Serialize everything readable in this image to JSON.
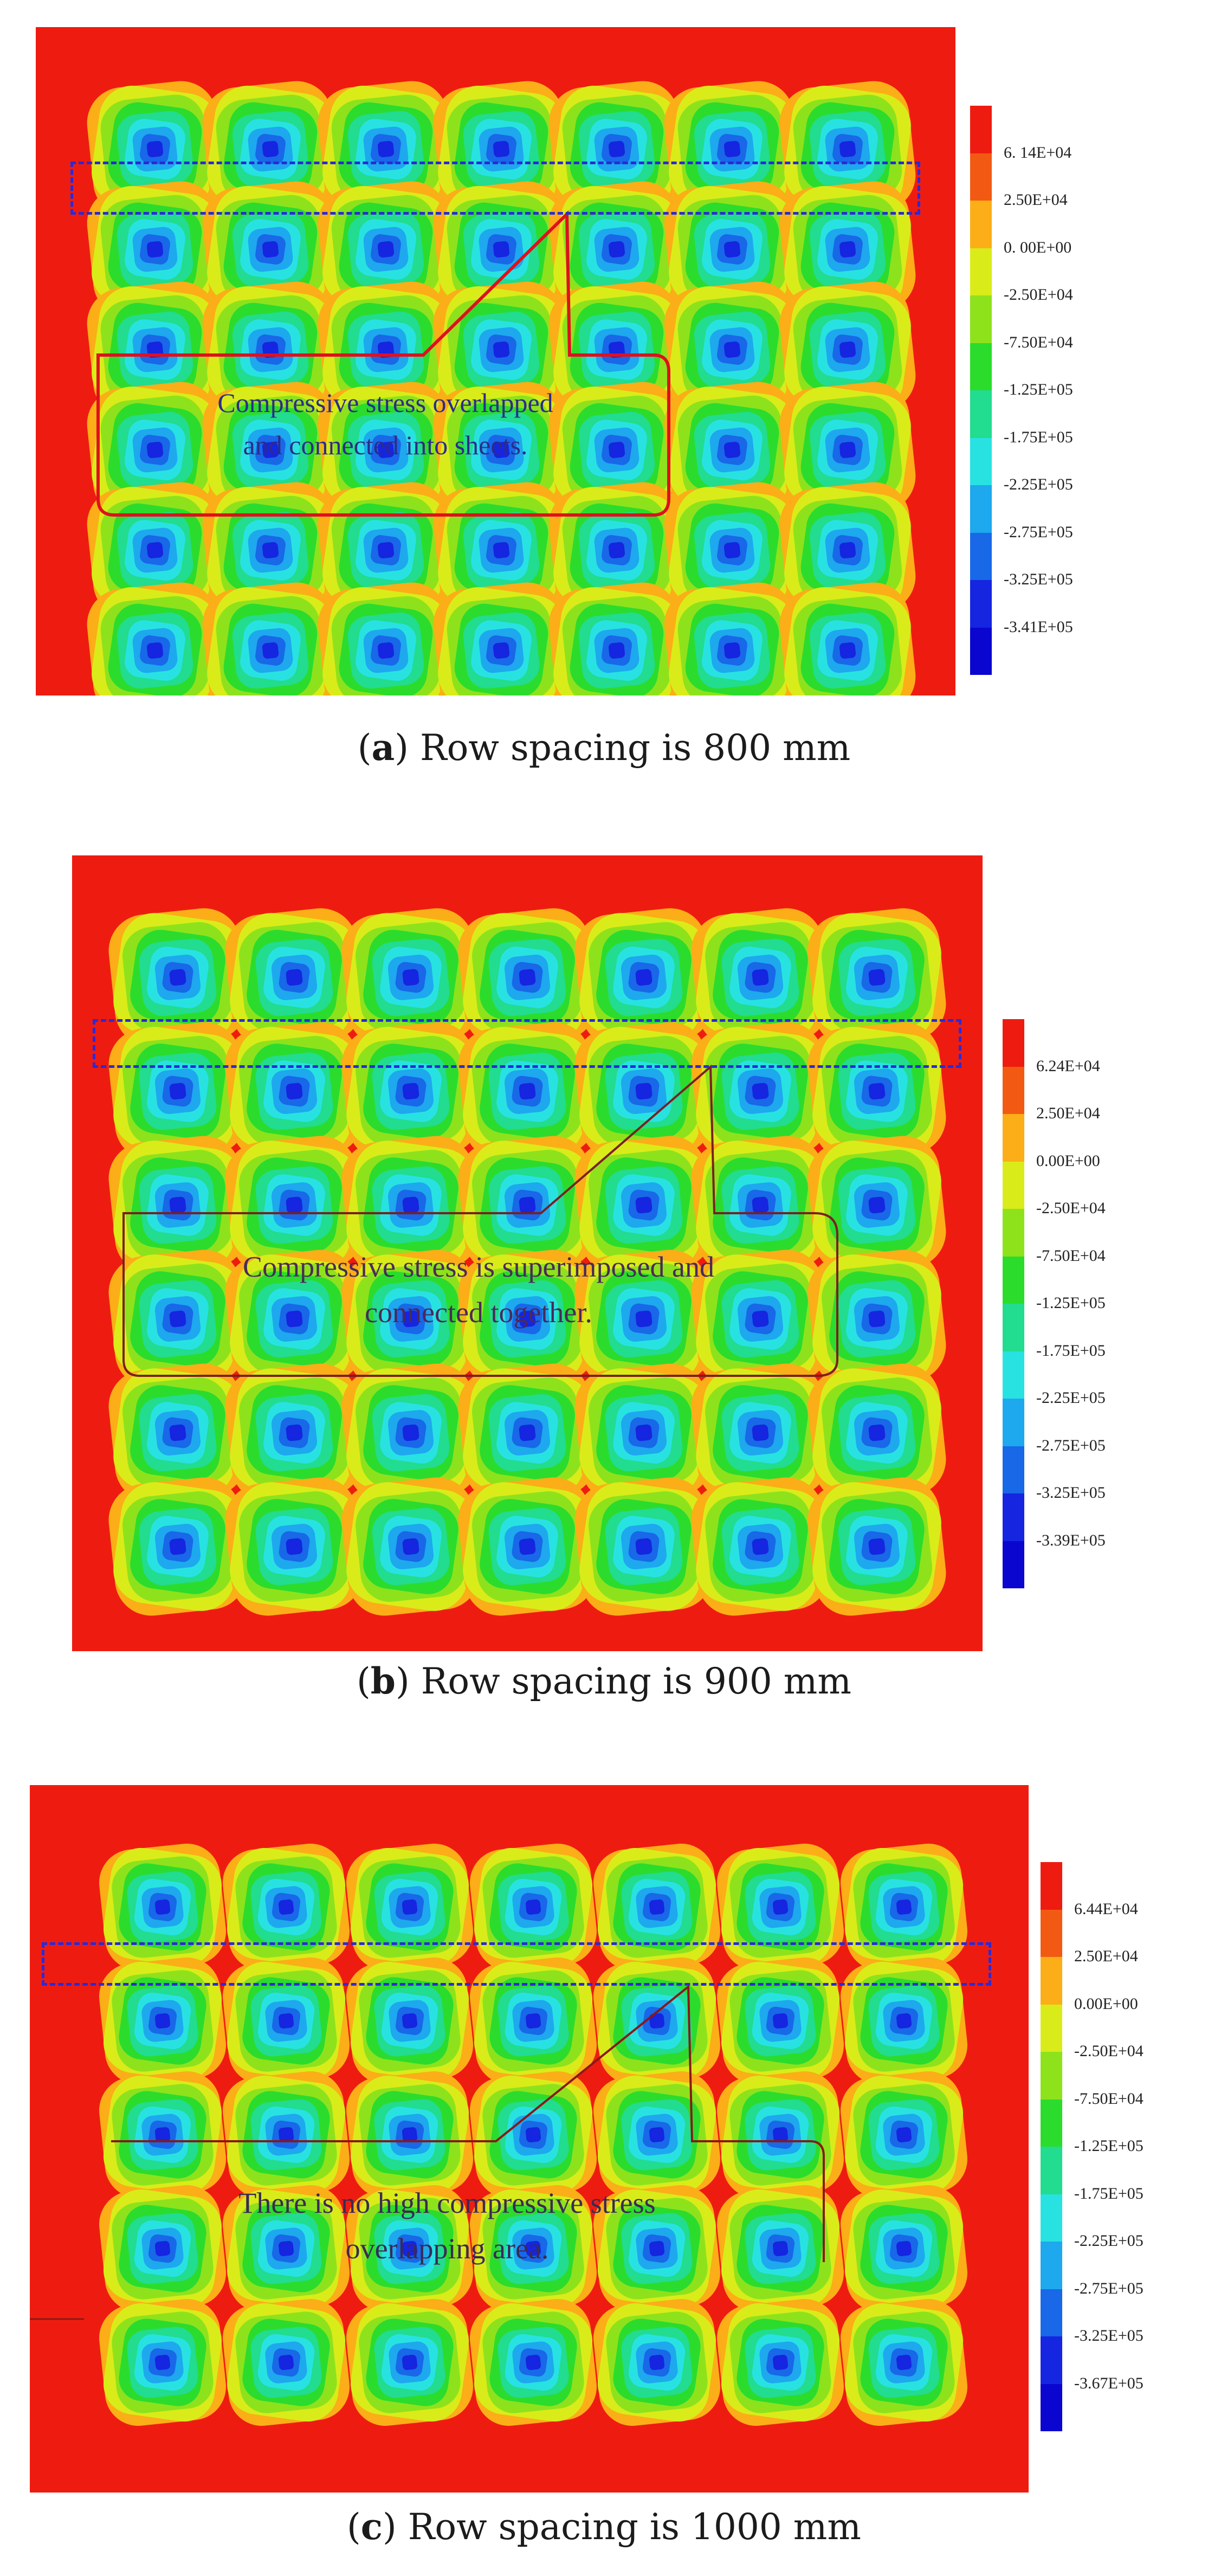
{
  "colors": {
    "background": "#ee1c10",
    "scale": [
      "#ee1c10",
      "#f25a14",
      "#fbae17",
      "#d9ec19",
      "#8ee21c",
      "#2bdc2d",
      "#22dc8f",
      "#28e2e2",
      "#1ea8ee",
      "#1868e8",
      "#1525e0",
      "#0a06cf"
    ],
    "callout_outline_a": "#e0101e",
    "callout_outline_b": "#7a2020",
    "selection_box": "#2a2ad8"
  },
  "panels": [
    {
      "id": "a",
      "caption_letter": "a",
      "caption_text": "Row spacing is 800 mm",
      "legend_labels": [
        "6. 14E+04",
        "2.50E+04",
        "0. 00E+00",
        "-2.50E+04",
        "-7.50E+04",
        "-1.25E+05",
        "-1.75E+05",
        "-2.25E+05",
        "-2.75E+05",
        "-3.25E+05",
        "-3.41E+05"
      ],
      "annotation": [
        "Compressive stress overlapped",
        "and connected into sheets."
      ],
      "grid": {
        "rows": 6,
        "cols": 7
      }
    },
    {
      "id": "b",
      "caption_letter": "b",
      "caption_text": "Row spacing is 900 mm",
      "legend_labels": [
        "6.24E+04",
        "2.50E+04",
        "0.00E+00",
        "-2.50E+04",
        "-7.50E+04",
        "-1.25E+05",
        "-1.75E+05",
        "-2.25E+05",
        "-2.75E+05",
        "-3.25E+05",
        "-3.39E+05"
      ],
      "annotation": [
        "Compressive stress is superimposed and",
        "connected together."
      ],
      "grid": {
        "rows": 6,
        "cols": 7
      }
    },
    {
      "id": "c",
      "caption_letter": "c",
      "caption_text": "Row spacing is 1000 mm",
      "legend_labels": [
        "6.44E+04",
        "2.50E+04",
        "0.00E+00",
        "-2.50E+04",
        "-7.50E+04",
        "-1.25E+05",
        "-1.75E+05",
        "-2.25E+05",
        "-2.75E+05",
        "-3.25E+05",
        "-3.67E+05"
      ],
      "annotation": [
        "There is no high compressive stress",
        "overlapping area."
      ],
      "grid": {
        "rows": 5,
        "cols": 7
      }
    }
  ]
}
